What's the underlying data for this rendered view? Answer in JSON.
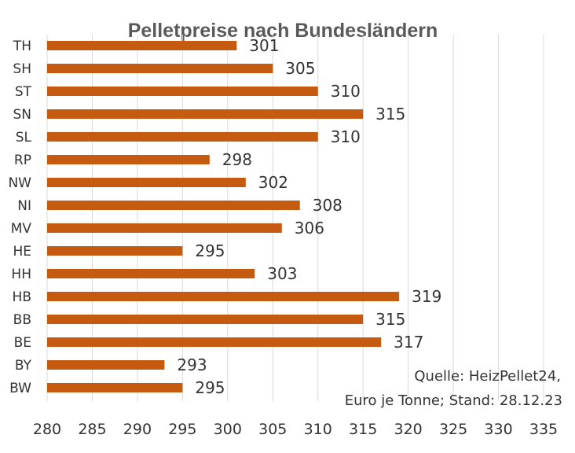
{
  "chart_data": {
    "type": "bar",
    "orientation": "horizontal",
    "title": "Pelletpreise  nach Bundesländern",
    "xlabel": "",
    "ylabel": "",
    "categories": [
      "TH",
      "SH",
      "ST",
      "SN",
      "SL",
      "RP",
      "NW",
      "NI",
      "MV",
      "HE",
      "HH",
      "HB",
      "BB",
      "BE",
      "BY",
      "BW"
    ],
    "values": [
      301,
      305,
      310,
      315,
      310,
      298,
      302,
      308,
      306,
      295,
      303,
      319,
      315,
      317,
      293,
      295
    ],
    "data_labels": [
      "301",
      "305",
      "310",
      "315",
      "310",
      "298",
      "302",
      "308",
      "306",
      "295",
      "303",
      "319",
      "315",
      "317",
      "293",
      "295"
    ],
    "xlim": [
      280,
      335
    ],
    "x_ticks": [
      "280",
      "285",
      "290",
      "295",
      "300",
      "305",
      "310",
      "315",
      "320",
      "325",
      "330",
      "335"
    ],
    "grid": "vertical",
    "legend": "none",
    "annotation_lines": [
      "Quelle: HeizPellet24,",
      "Euro je Tonne; Stand: 28.12.23"
    ],
    "colors": {
      "bar": "#C55A11",
      "grid": "#D9D9D9",
      "title": "#5A5A5A",
      "text": "#333333"
    }
  }
}
